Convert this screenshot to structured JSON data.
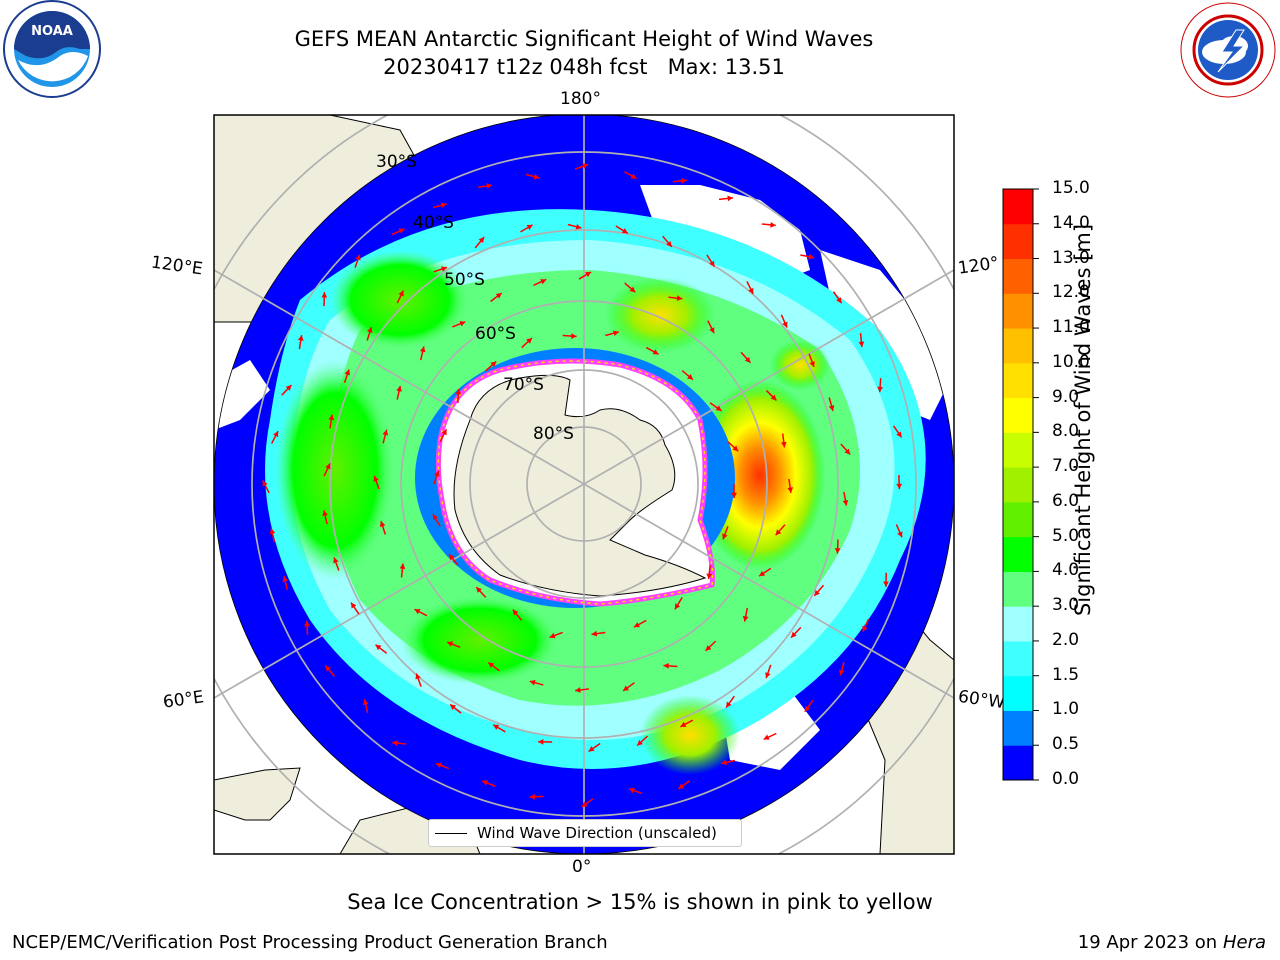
{
  "title": {
    "line1": "GEFS MEAN Antarctic Significant Height of Wind Waves",
    "line2": "20230417 t12z 048h fcst   Max: 13.51"
  },
  "logos": {
    "left": "noaa-logo",
    "right": "nws-logo"
  },
  "map": {
    "lon_labels": {
      "top": "180°",
      "bottom": "0°",
      "upper_left": "120°E",
      "lower_left": "60°E",
      "upper_right": "120°",
      "lower_right": "60°W"
    },
    "lat_labels": [
      "30°S",
      "40°S",
      "50°S",
      "60°S",
      "70°S",
      "80°S"
    ],
    "legend": "Wind Wave Direction (unscaled)",
    "arrow_color": "#ff0000",
    "land_color": "#efeedc"
  },
  "colorbar": {
    "label": "Significant Height of Wind Waves [m]",
    "ticks": [
      "0.0",
      "0.5",
      "1.0",
      "1.5",
      "2.0",
      "3.0",
      "4.0",
      "5.0",
      "6.0",
      "7.0",
      "8.0",
      "9.0",
      "10.0",
      "11.0",
      "12.0",
      "13.0",
      "14.0",
      "15.0"
    ],
    "colors": [
      "#0000ff",
      "#0080ff",
      "#00ffff",
      "#40ffff",
      "#a0ffff",
      "#60ff80",
      "#00ff00",
      "#60f000",
      "#a0f000",
      "#c8ff00",
      "#ffff00",
      "#ffe000",
      "#ffc000",
      "#ff9000",
      "#ff6000",
      "#ff3000",
      "#ff0000"
    ]
  },
  "subtitle": "Sea Ice Concentration > 15% is shown in pink to yellow",
  "footer": {
    "left": "NCEP/EMC/Verification Post Processing Product Generation Branch",
    "date": "19 Apr 2023 on ",
    "host": "Hera"
  }
}
